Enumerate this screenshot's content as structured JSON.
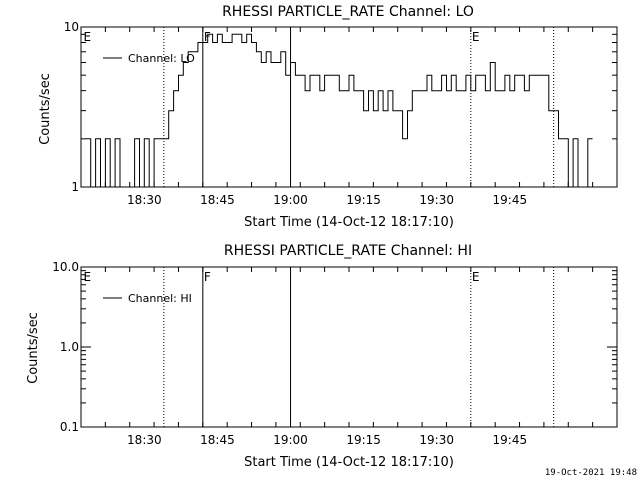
{
  "footer_date": "19-Oct-2021 19:48",
  "chart_data": [
    {
      "type": "line",
      "title": "RHESSI PARTICLE_RATE Channel: LO",
      "xlabel": "Start Time (14-Oct-12 18:17:10)",
      "ylabel": "Counts/sec",
      "yscale": "log",
      "ylim": [
        1,
        10
      ],
      "xlim_min": [
        0,
        110
      ],
      "ytick_labels": [
        "1",
        "10"
      ],
      "xtick_labels": [
        "18:30",
        "18:45",
        "19:00",
        "19:15",
        "19:30",
        "19:45"
      ],
      "legend": "top-left",
      "series": [
        {
          "name": "Channel: LO",
          "x_min": [
            1,
            2,
            3,
            4,
            5,
            6,
            7,
            8,
            9,
            10,
            11,
            12,
            13,
            14,
            15,
            16,
            17,
            18,
            19,
            20,
            21,
            22,
            23,
            24,
            25,
            26,
            27,
            28,
            29,
            30,
            31,
            32,
            33,
            34,
            35,
            36,
            37,
            38,
            39,
            40,
            41,
            42,
            43,
            44,
            45,
            46,
            47,
            48,
            49,
            50,
            51,
            52,
            53,
            54,
            55,
            56,
            57,
            58,
            59,
            60,
            61,
            62,
            63,
            64,
            65,
            66,
            67,
            68,
            69,
            70,
            71,
            72,
            73,
            74,
            75,
            76,
            77,
            78,
            79,
            80,
            81,
            82,
            83,
            84,
            85,
            86,
            87,
            88,
            89,
            90,
            91,
            92,
            93,
            94,
            95,
            96,
            97,
            98,
            99,
            100,
            101,
            102,
            103,
            104
          ],
          "y": [
            2,
            1,
            2,
            1,
            2,
            1,
            2,
            1,
            1,
            1,
            2,
            1,
            2,
            1,
            2,
            2,
            2,
            3,
            4,
            5,
            6,
            7,
            7,
            8,
            8,
            9,
            8,
            9,
            8,
            8,
            9,
            9,
            8,
            9,
            8,
            7,
            6,
            7,
            6,
            6,
            7,
            5,
            6,
            5,
            5,
            4,
            5,
            5,
            4,
            5,
            5,
            5,
            4,
            4,
            5,
            4,
            4,
            3,
            4,
            3,
            4,
            3,
            4,
            3,
            3,
            2,
            3,
            4,
            4,
            4,
            5,
            4,
            4,
            5,
            4,
            5,
            4,
            4,
            5,
            4,
            5,
            5,
            4,
            6,
            4,
            4,
            5,
            4,
            5,
            5,
            4,
            5,
            5,
            5,
            5,
            3,
            3,
            2,
            2,
            1,
            2,
            1,
            1,
            2
          ]
        }
      ],
      "annotations": [
        {
          "x_min": 0.3,
          "label": "E",
          "style": "edge"
        },
        {
          "x_min": 17,
          "label": "",
          "style": "dotted"
        },
        {
          "x_min": 25,
          "label": "F",
          "style": "solid"
        },
        {
          "x_min": 43,
          "label": "",
          "style": "solid"
        },
        {
          "x_min": 80,
          "label": "E",
          "style": "dotted"
        },
        {
          "x_min": 97,
          "label": "",
          "style": "dotted"
        }
      ]
    },
    {
      "type": "line",
      "title": "RHESSI PARTICLE_RATE Channel: HI",
      "xlabel": "Start Time (14-Oct-12 18:17:10)",
      "ylabel": "Counts/sec",
      "yscale": "log",
      "ylim": [
        0.1,
        10
      ],
      "xlim_min": [
        0,
        110
      ],
      "ytick_labels": [
        "0.1",
        "1.0",
        "10.0"
      ],
      "xtick_labels": [
        "18:30",
        "18:45",
        "19:00",
        "19:15",
        "19:30",
        "19:45"
      ],
      "legend": "top-left",
      "series": [
        {
          "name": "Channel: HI",
          "x_min": [],
          "y": []
        }
      ],
      "annotations": [
        {
          "x_min": 0.3,
          "label": "E",
          "style": "edge"
        },
        {
          "x_min": 17,
          "label": "",
          "style": "dotted"
        },
        {
          "x_min": 25,
          "label": "F",
          "style": "solid"
        },
        {
          "x_min": 43,
          "label": "",
          "style": "solid"
        },
        {
          "x_min": 80,
          "label": "E",
          "style": "dotted"
        },
        {
          "x_min": 97,
          "label": "",
          "style": "dotted"
        }
      ]
    }
  ]
}
